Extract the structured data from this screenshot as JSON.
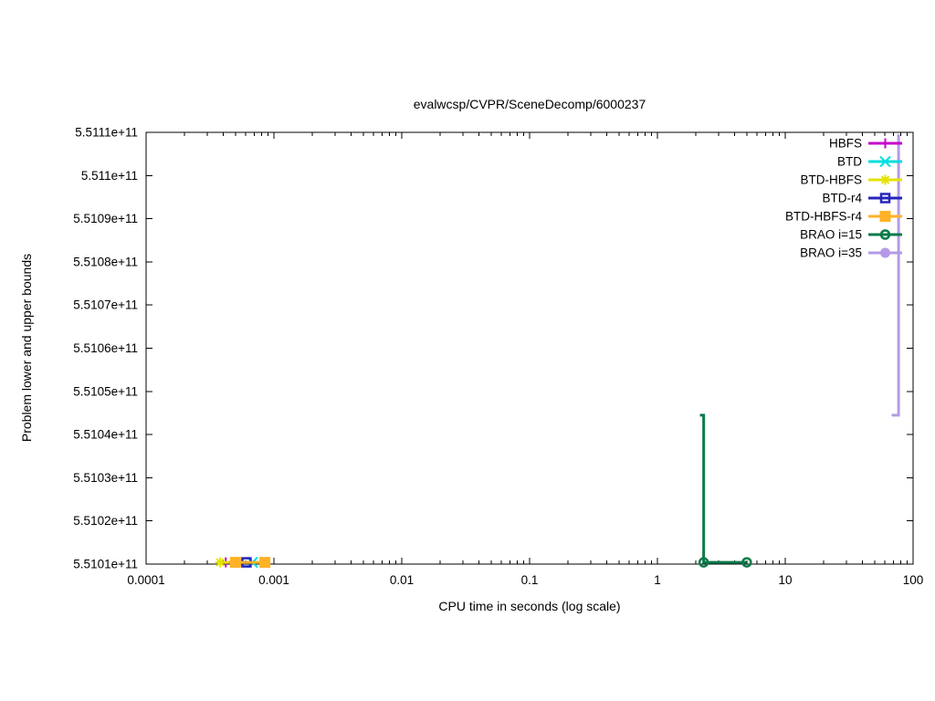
{
  "chart_data": {
    "type": "line",
    "title": "evalwcsp/CVPR/SceneDecomp/6000237",
    "xlabel": "CPU time in seconds (log scale)",
    "ylabel": "Problem lower and upper bounds",
    "x_scale": "log",
    "xlim": [
      0.0001,
      100
    ],
    "ylim": [
      551010000000,
      551110000000
    ],
    "grid": false,
    "legend_position": "inside-top-right",
    "x_ticks": [
      {
        "value": 0.0001,
        "label": "0.0001"
      },
      {
        "value": 0.001,
        "label": "0.001"
      },
      {
        "value": 0.01,
        "label": "0.01"
      },
      {
        "value": 0.1,
        "label": "0.1"
      },
      {
        "value": 1,
        "label": "1"
      },
      {
        "value": 10,
        "label": "10"
      },
      {
        "value": 100,
        "label": "100"
      }
    ],
    "y_ticks": [
      {
        "value": 551010000000,
        "label": "5.5101e+11"
      },
      {
        "value": 551020000000,
        "label": "5.5102e+11"
      },
      {
        "value": 551030000000,
        "label": "5.5103e+11"
      },
      {
        "value": 551040000000,
        "label": "5.5104e+11"
      },
      {
        "value": 551050000000,
        "label": "5.5105e+11"
      },
      {
        "value": 551060000000,
        "label": "5.5106e+11"
      },
      {
        "value": 551070000000,
        "label": "5.5107e+11"
      },
      {
        "value": 551080000000,
        "label": "5.5108e+11"
      },
      {
        "value": 551090000000,
        "label": "5.5109e+11"
      },
      {
        "value": 551100000000,
        "label": "5.511e+11"
      },
      {
        "value": 551110000000,
        "label": "5.5111e+11"
      }
    ],
    "series": [
      {
        "name": "HBFS",
        "color": "#c404cc",
        "marker": "plus",
        "points": [
          [
            0.00042,
            551010400000
          ]
        ],
        "segments": []
      },
      {
        "name": "BTD",
        "color": "#00dede",
        "marker": "x",
        "points": [
          [
            0.00068,
            551010400000
          ]
        ],
        "segments": [
          [
            [
              0.00058,
              551010400000
            ],
            [
              0.00088,
              551010400000
            ]
          ]
        ]
      },
      {
        "name": "BTD-HBFS",
        "color": "#e3e300",
        "marker": "star",
        "points": [
          [
            0.00038,
            551010400000
          ]
        ],
        "segments": [
          [
            [
              0.00036,
              551010400000
            ],
            [
              0.00048,
              551010400000
            ]
          ]
        ]
      },
      {
        "name": "BTD-r4",
        "color": "#2525bd",
        "marker": "square-open",
        "points": [
          [
            0.00061,
            551010400000
          ]
        ],
        "segments": []
      },
      {
        "name": "BTD-HBFS-r4",
        "color": "#ffb226",
        "marker": "square-filled",
        "points": [
          [
            0.0005,
            551010400000
          ],
          [
            0.00085,
            551010400000
          ]
        ],
        "segments": [
          [
            [
              0.00044,
              551010400000
            ],
            [
              0.00092,
              551010400000
            ]
          ]
        ]
      },
      {
        "name": "BRAO i=15",
        "color": "#0b7a4a",
        "marker": "circle-open",
        "points": [
          [
            2.3,
            551010400000
          ],
          [
            5,
            551010400000
          ]
        ],
        "segments": [
          [
            [
              2.15,
              551044500000
            ],
            [
              2.3,
              551044500000
            ],
            [
              2.3,
              551010400000
            ],
            [
              5,
              551010400000
            ]
          ]
        ]
      },
      {
        "name": "BRAO i=35",
        "color": "#b49ae6",
        "marker": "circle-filled",
        "points": [],
        "segments": [
          [
            [
              68,
              551044500000
            ],
            [
              77,
              551044500000
            ],
            [
              77,
              551109600000
            ]
          ]
        ]
      }
    ]
  }
}
